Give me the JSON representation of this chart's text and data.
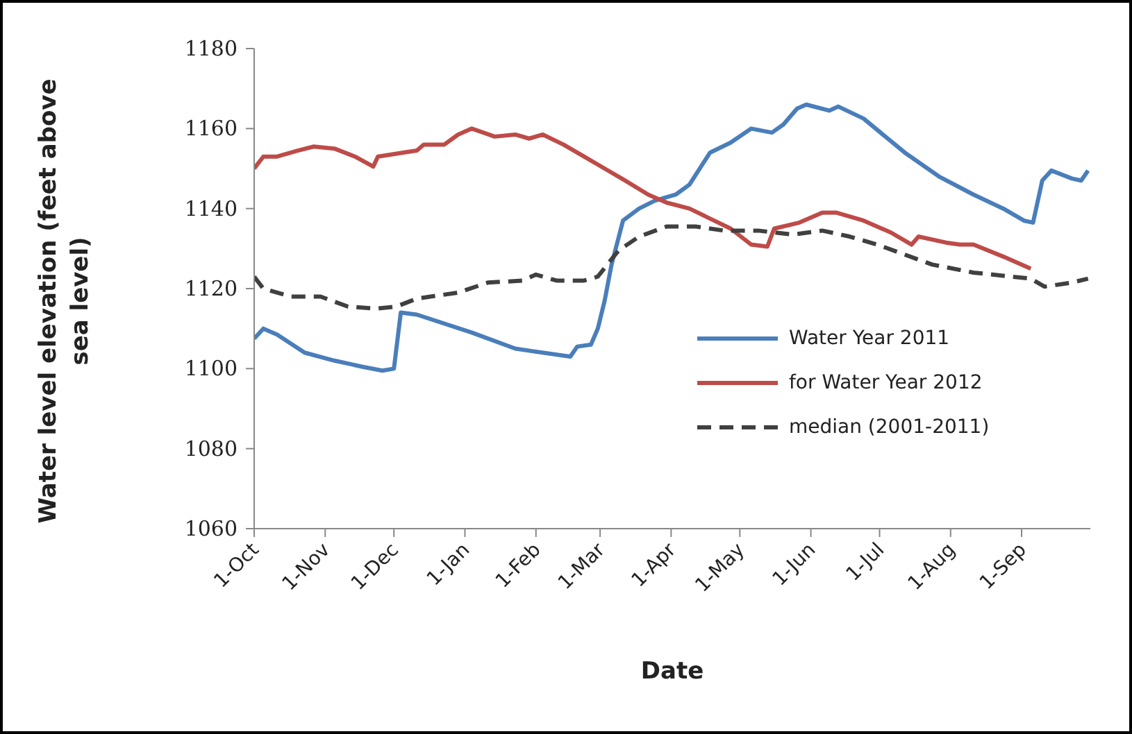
{
  "chart_data": {
    "type": "line",
    "xlabel": "Date",
    "ylabel": "Water level elevation (feet above sea level)",
    "xlim": [
      "2010-10-01",
      "2011-09-30"
    ],
    "xticks": [
      {
        "value": "2010-10-01",
        "label": "1-Oct"
      },
      {
        "value": "2010-11-01",
        "label": "1-Nov"
      },
      {
        "value": "2010-12-01",
        "label": "1-Dec"
      },
      {
        "value": "2011-01-01",
        "label": "1-Jan"
      },
      {
        "value": "2011-02-01",
        "label": "1-Feb"
      },
      {
        "value": "2011-03-01",
        "label": "1-Mar"
      },
      {
        "value": "2011-04-01",
        "label": "1-Apr"
      },
      {
        "value": "2011-05-01",
        "label": "1-May"
      },
      {
        "value": "2011-06-01",
        "label": "1-Jun"
      },
      {
        "value": "2011-07-01",
        "label": "1-Jul"
      },
      {
        "value": "2011-08-01",
        "label": "1-Aug"
      },
      {
        "value": "2011-09-01",
        "label": "1-Sep"
      }
    ],
    "ylim": [
      1060,
      1180
    ],
    "yticks": [
      1060,
      1080,
      1100,
      1120,
      1140,
      1160,
      1180
    ],
    "legend": "right",
    "marker": "none",
    "series": [
      {
        "name": "Water Year 2011",
        "color": "#4a7ebb",
        "line_style": "solid",
        "x": [
          "2010-10-01",
          "2010-10-05",
          "2010-10-11",
          "2010-10-23",
          "2010-11-05",
          "2010-11-17",
          "2010-11-26",
          "2010-12-01",
          "2010-12-04",
          "2010-12-11",
          "2011-01-04",
          "2011-01-23",
          "2011-02-16",
          "2011-02-19",
          "2011-02-25",
          "2011-02-28",
          "2011-03-03",
          "2011-03-06",
          "2011-03-11",
          "2011-03-18",
          "2011-03-25",
          "2011-04-03",
          "2011-04-09",
          "2011-04-18",
          "2011-04-27",
          "2011-05-06",
          "2011-05-15",
          "2011-05-20",
          "2011-05-26",
          "2011-05-30",
          "2011-06-09",
          "2011-06-13",
          "2011-06-24",
          "2011-07-12",
          "2011-07-27",
          "2011-08-11",
          "2011-08-24",
          "2011-09-02",
          "2011-09-06",
          "2011-09-10",
          "2011-09-14",
          "2011-09-23",
          "2011-09-27",
          "2011-09-30"
        ],
        "values": [
          1107.5,
          1110,
          1108.5,
          1104,
          1102,
          1100.5,
          1099.5,
          1100,
          1114,
          1113.5,
          1109,
          1105,
          1103,
          1105.5,
          1106,
          1110,
          1117,
          1126,
          1137,
          1140,
          1142,
          1143.5,
          1146,
          1154,
          1156.5,
          1160,
          1159,
          1161,
          1165,
          1166,
          1164.5,
          1165.5,
          1162.5,
          1154,
          1148,
          1143.5,
          1140,
          1137,
          1136.5,
          1147,
          1149.5,
          1147.5,
          1147,
          1149.5
        ]
      },
      {
        "name": "for Water Year 2012",
        "color": "#be4b48",
        "line_style": "solid",
        "x": [
          "2010-10-01",
          "2010-10-05",
          "2010-10-11",
          "2010-10-20",
          "2010-10-27",
          "2010-11-05",
          "2010-11-14",
          "2010-11-22",
          "2010-11-24",
          "2010-12-05",
          "2010-12-11",
          "2010-12-14",
          "2010-12-23",
          "2010-12-29",
          "2011-01-04",
          "2011-01-14",
          "2011-01-23",
          "2011-01-29",
          "2011-02-04",
          "2011-02-13",
          "2011-02-22",
          "2011-03-03",
          "2011-03-12",
          "2011-03-22",
          "2011-03-30",
          "2011-04-09",
          "2011-04-18",
          "2011-04-27",
          "2011-05-06",
          "2011-05-13",
          "2011-05-16",
          "2011-05-27",
          "2011-06-06",
          "2011-06-12",
          "2011-06-24",
          "2011-07-06",
          "2011-07-15",
          "2011-07-18",
          "2011-07-30",
          "2011-08-05",
          "2011-08-11",
          "2011-08-24",
          "2011-09-05"
        ],
        "values": [
          1150,
          1153,
          1153,
          1154.5,
          1155.5,
          1155,
          1153,
          1150.5,
          1153,
          1154,
          1154.5,
          1156,
          1156,
          1158.5,
          1160,
          1158,
          1158.5,
          1157.5,
          1158.5,
          1156,
          1153,
          1150,
          1147,
          1143.5,
          1141.5,
          1140,
          1137.5,
          1135,
          1131,
          1130.5,
          1135,
          1136.5,
          1139,
          1139,
          1137,
          1134,
          1131,
          1133,
          1131.5,
          1131,
          1131,
          1128,
          1125
        ]
      },
      {
        "name": "median (2001-2011)",
        "color": "#404040",
        "line_style": "dashed",
        "x": [
          "2010-10-01",
          "2010-10-05",
          "2010-10-17",
          "2010-10-30",
          "2010-11-11",
          "2010-11-23",
          "2010-12-02",
          "2010-12-11",
          "2010-12-29",
          "2011-01-11",
          "2011-01-26",
          "2011-02-01",
          "2011-02-10",
          "2011-02-22",
          "2011-02-28",
          "2011-03-09",
          "2011-03-18",
          "2011-03-30",
          "2011-04-12",
          "2011-04-24",
          "2011-05-09",
          "2011-05-24",
          "2011-06-06",
          "2011-06-18",
          "2011-06-30",
          "2011-07-12",
          "2011-07-24",
          "2011-08-11",
          "2011-09-05",
          "2011-09-11",
          "2011-09-23",
          "2011-09-30"
        ],
        "values": [
          1123,
          1120,
          1118,
          1118,
          1115.5,
          1115,
          1115.5,
          1117.5,
          1119,
          1121.5,
          1122,
          1123.5,
          1122,
          1122,
          1123,
          1129.5,
          1133,
          1135.5,
          1135.5,
          1134.5,
          1134.5,
          1133.5,
          1134.5,
          1133,
          1131,
          1128.5,
          1126,
          1124,
          1122.5,
          1120.5,
          1121.5,
          1122.5
        ]
      }
    ]
  }
}
